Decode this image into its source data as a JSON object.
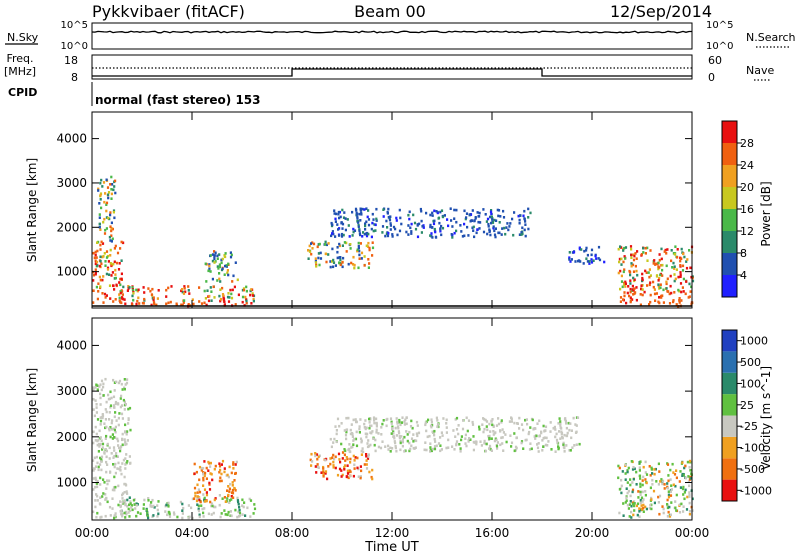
{
  "header": {
    "station": "Pykkvibaer (fitACF)",
    "beam": "Beam 00",
    "date": "12/Sep/2014"
  },
  "status_panels": {
    "nsky_label": "N.Sky",
    "nsearch_label": "N.Search",
    "noise_ticks_left": [
      "10^5",
      "10^0"
    ],
    "noise_ticks_right": [
      "10^5",
      "10^0"
    ],
    "freq_label_1": "Freq.",
    "freq_label_2": "[MHz]",
    "freq_ticks": [
      "18",
      "8"
    ],
    "nave_label": "Nave",
    "nave_ticks": [
      "60",
      "0"
    ],
    "cpid_label": "CPID",
    "cpid_text": "normal (fast stereo) 153"
  },
  "time_axis": {
    "labels": [
      "00:00",
      "04:00",
      "08:00",
      "12:00",
      "16:00",
      "20:00",
      "00:00"
    ],
    "title": "Time UT"
  },
  "chart_data": [
    {
      "type": "heatmap",
      "parameter": "Power",
      "xlabel": "Time UT",
      "ylabel": "Slant Range [km]",
      "x_range_hours": [
        0,
        24
      ],
      "ylim": [
        180,
        4600
      ],
      "y_ticks": [
        1000,
        2000,
        3000,
        4000
      ],
      "colorbar": {
        "label": "Power [dB]",
        "ticks": [
          "4",
          "8",
          "12",
          "16",
          "20",
          "24",
          "28"
        ],
        "colors": [
          "#2020ff",
          "#2050b0",
          "#2a8a6a",
          "#4ab848",
          "#c8c820",
          "#f0a020",
          "#f06010",
          "#e81010"
        ]
      },
      "echo_regions": [
        {
          "t": [
            0.0,
            1.2
          ],
          "range_km": [
            300,
            1700
          ],
          "level": "high"
        },
        {
          "t": [
            0.2,
            0.9
          ],
          "range_km": [
            1700,
            3200
          ],
          "level": "medium"
        },
        {
          "t": [
            1.0,
            6.5
          ],
          "range_km": [
            250,
            700
          ],
          "level": "high"
        },
        {
          "t": [
            4.5,
            5.8
          ],
          "range_km": [
            800,
            1500
          ],
          "level": "medium"
        },
        {
          "t": [
            8.6,
            11.2
          ],
          "range_km": [
            1100,
            1700
          ],
          "level": "medium"
        },
        {
          "t": [
            9.5,
            17.5
          ],
          "range_km": [
            1800,
            2450
          ],
          "level": "low"
        },
        {
          "t": [
            19.0,
            20.5
          ],
          "range_km": [
            1200,
            1600
          ],
          "level": "low"
        },
        {
          "t": [
            21.0,
            24.0
          ],
          "range_km": [
            250,
            1600
          ],
          "level": "high"
        }
      ]
    },
    {
      "type": "heatmap",
      "parameter": "Velocity",
      "xlabel": "Time UT",
      "ylabel": "Slant Range [km]",
      "x_range_hours": [
        0,
        24
      ],
      "ylim": [
        180,
        4600
      ],
      "y_ticks": [
        1000,
        2000,
        3000,
        4000
      ],
      "colorbar": {
        "label": "Velocity [m s^-1]",
        "ticks": [
          "1000",
          "500",
          "100",
          "25",
          "-25",
          "-100",
          "-500",
          "-1000"
        ],
        "colors": [
          "#2040c0",
          "#2a70b0",
          "#2a8a6a",
          "#60c040",
          "#c8c8c0",
          "#f0a020",
          "#f07010",
          "#e81010"
        ]
      },
      "echo_regions": [
        {
          "t": [
            0.0,
            1.5
          ],
          "range_km": [
            250,
            3300
          ],
          "level": "ground"
        },
        {
          "t": [
            1.0,
            6.5
          ],
          "range_km": [
            250,
            700
          ],
          "level": "positive"
        },
        {
          "t": [
            4.0,
            5.8
          ],
          "range_km": [
            600,
            1500
          ],
          "level": "negative"
        },
        {
          "t": [
            8.6,
            11.2
          ],
          "range_km": [
            1100,
            1700
          ],
          "level": "negative"
        },
        {
          "t": [
            9.5,
            19.5
          ],
          "range_km": [
            1700,
            2450
          ],
          "level": "ground"
        },
        {
          "t": [
            21.0,
            24.0
          ],
          "range_km": [
            250,
            1500
          ],
          "level": "mixed"
        }
      ]
    }
  ]
}
